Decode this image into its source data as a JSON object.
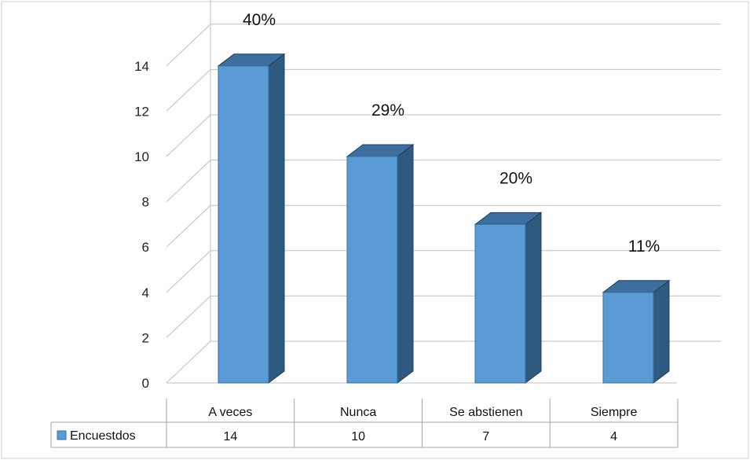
{
  "chart_data": {
    "type": "bar",
    "categories": [
      "A veces",
      "Nunca",
      "Se abstienen",
      "Siempre"
    ],
    "series": [
      {
        "name": "Encuestdos",
        "values": [
          14,
          10,
          7,
          4
        ]
      }
    ],
    "percent_labels": [
      "40%",
      "29%",
      "20%",
      "11%"
    ],
    "data_table": true,
    "ylim": [
      0,
      14
    ],
    "yticks": [
      "0",
      "2",
      "4",
      "6",
      "8",
      "10",
      "12",
      "14"
    ],
    "grid": true,
    "three_d": true,
    "colors": {
      "bar_front": "#5B9BD5",
      "bar_side": "#2E5A80",
      "bar_top": "#3C6E9E",
      "legend_key": "#5B9BD5",
      "grid": "#bfbfbf"
    }
  }
}
